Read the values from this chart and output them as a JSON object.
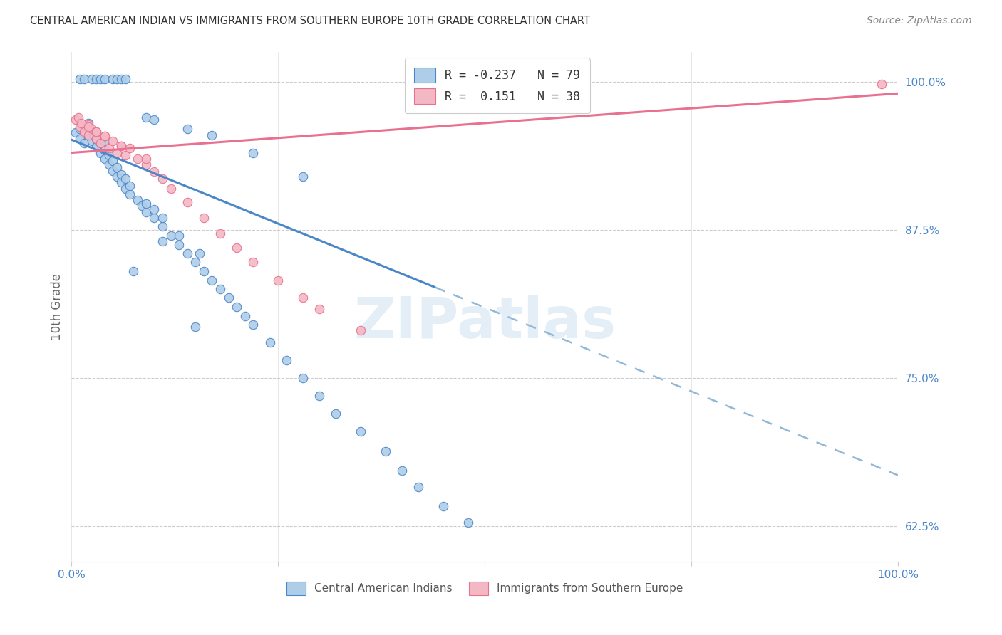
{
  "title": "CENTRAL AMERICAN INDIAN VS IMMIGRANTS FROM SOUTHERN EUROPE 10TH GRADE CORRELATION CHART",
  "source": "Source: ZipAtlas.com",
  "ylabel": "10th Grade",
  "xlabel": "",
  "watermark": "ZIPatlas",
  "blue_R": -0.237,
  "blue_N": 79,
  "pink_R": 0.151,
  "pink_N": 38,
  "xlim": [
    0.0,
    1.0
  ],
  "ylim": [
    0.595,
    1.025
  ],
  "yticks": [
    0.625,
    0.75,
    0.875,
    1.0
  ],
  "ytick_labels": [
    "62.5%",
    "75.0%",
    "87.5%",
    "100.0%"
  ],
  "xticks": [
    0.0,
    0.25,
    0.5,
    0.75,
    1.0
  ],
  "xtick_labels": [
    "0.0%",
    "",
    "",
    "",
    "100.0%"
  ],
  "blue_color": "#aecde8",
  "pink_color": "#f4b8c4",
  "blue_line_color": "#4a86c8",
  "pink_line_color": "#e87090",
  "dashed_line_color": "#90b8d8",
  "title_color": "#333333",
  "axis_label_color": "#666666",
  "tick_color": "#4a86c8",
  "source_color": "#888888",
  "background_color": "#ffffff",
  "blue_scatter_x": [
    0.005,
    0.01,
    0.01,
    0.015,
    0.02,
    0.02,
    0.02,
    0.025,
    0.025,
    0.03,
    0.03,
    0.035,
    0.035,
    0.04,
    0.04,
    0.04,
    0.045,
    0.045,
    0.05,
    0.05,
    0.055,
    0.055,
    0.06,
    0.06,
    0.065,
    0.065,
    0.07,
    0.07,
    0.08,
    0.085,
    0.09,
    0.09,
    0.1,
    0.1,
    0.11,
    0.11,
    0.12,
    0.13,
    0.13,
    0.14,
    0.15,
    0.155,
    0.16,
    0.17,
    0.18,
    0.19,
    0.2,
    0.21,
    0.22,
    0.24,
    0.26,
    0.28,
    0.3,
    0.32,
    0.35,
    0.38,
    0.4,
    0.42,
    0.45,
    0.48,
    0.01,
    0.015,
    0.025,
    0.03,
    0.035,
    0.04,
    0.05,
    0.055,
    0.06,
    0.065,
    0.09,
    0.1,
    0.14,
    0.17,
    0.22,
    0.28,
    0.11,
    0.075,
    0.15
  ],
  "blue_scatter_y": [
    0.957,
    0.952,
    0.96,
    0.948,
    0.955,
    0.96,
    0.965,
    0.95,
    0.958,
    0.945,
    0.952,
    0.94,
    0.948,
    0.935,
    0.942,
    0.95,
    0.93,
    0.938,
    0.925,
    0.933,
    0.92,
    0.928,
    0.915,
    0.922,
    0.91,
    0.918,
    0.905,
    0.912,
    0.9,
    0.895,
    0.89,
    0.897,
    0.885,
    0.892,
    0.878,
    0.885,
    0.87,
    0.862,
    0.87,
    0.855,
    0.848,
    0.855,
    0.84,
    0.832,
    0.825,
    0.818,
    0.81,
    0.802,
    0.795,
    0.78,
    0.765,
    0.75,
    0.735,
    0.72,
    0.705,
    0.688,
    0.672,
    0.658,
    0.642,
    0.628,
    1.002,
    1.002,
    1.002,
    1.002,
    1.002,
    1.002,
    1.002,
    1.002,
    1.002,
    1.002,
    0.97,
    0.968,
    0.96,
    0.955,
    0.94,
    0.92,
    0.865,
    0.84,
    0.793
  ],
  "pink_scatter_x": [
    0.005,
    0.01,
    0.015,
    0.02,
    0.02,
    0.025,
    0.03,
    0.03,
    0.035,
    0.04,
    0.045,
    0.05,
    0.055,
    0.06,
    0.065,
    0.07,
    0.08,
    0.09,
    0.1,
    0.11,
    0.12,
    0.14,
    0.16,
    0.18,
    0.2,
    0.22,
    0.25,
    0.28,
    0.3,
    0.35,
    0.008,
    0.012,
    0.02,
    0.03,
    0.04,
    0.06,
    0.09,
    0.98
  ],
  "pink_scatter_y": [
    0.968,
    0.962,
    0.958,
    0.964,
    0.955,
    0.96,
    0.952,
    0.958,
    0.948,
    0.954,
    0.944,
    0.95,
    0.94,
    0.946,
    0.938,
    0.944,
    0.935,
    0.93,
    0.924,
    0.918,
    0.91,
    0.898,
    0.885,
    0.872,
    0.86,
    0.848,
    0.832,
    0.818,
    0.808,
    0.79,
    0.97,
    0.965,
    0.962,
    0.958,
    0.954,
    0.946,
    0.935,
    0.998
  ],
  "blue_line_x0": 0.0,
  "blue_line_x_solid_end": 0.44,
  "blue_line_x1": 1.0,
  "blue_line_y0": 0.951,
  "blue_line_y1": 0.668,
  "pink_line_x0": 0.0,
  "pink_line_x1": 1.0,
  "pink_line_y0": 0.94,
  "pink_line_y1": 0.99
}
